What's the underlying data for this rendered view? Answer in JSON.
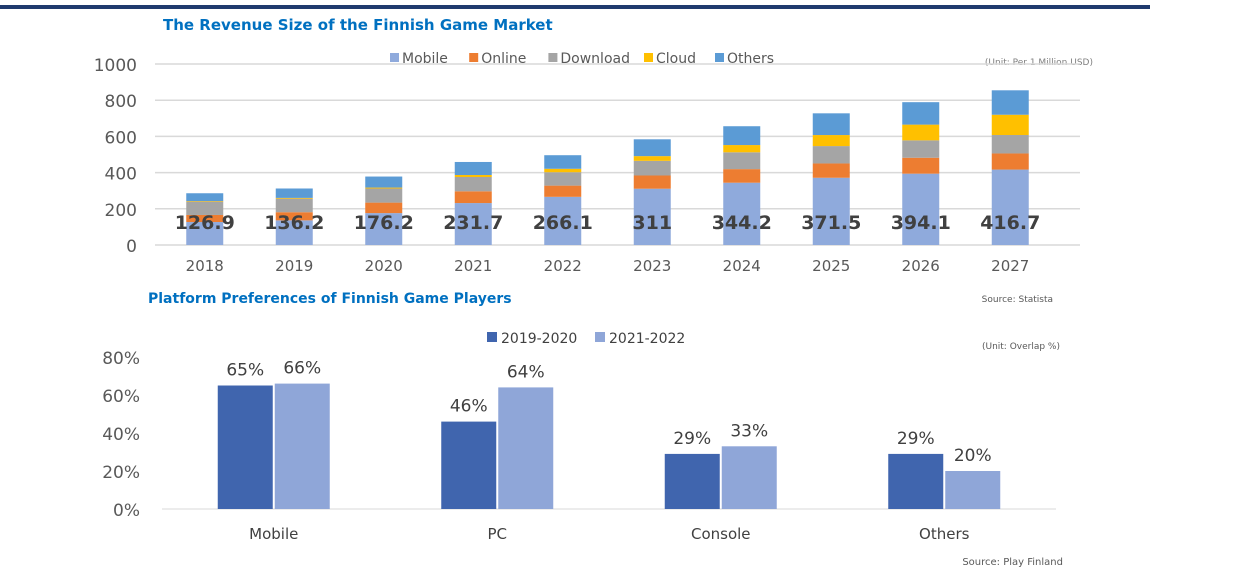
{
  "chart_data": [
    {
      "type": "bar",
      "stacked": true,
      "title": "The Revenue Size of the Finnish Game Market",
      "unit_note": "(Unit: Per 1 Million USD)",
      "source": "Source: Statista",
      "categories": [
        "2018",
        "2019",
        "2020",
        "2021",
        "2022",
        "2023",
        "2024",
        "2025",
        "2026",
        "2027"
      ],
      "ylim": [
        0,
        1000
      ],
      "yticks": [
        0,
        200,
        400,
        600,
        800,
        1000
      ],
      "grid": true,
      "legend_position": "top",
      "series": [
        {
          "name": "Mobile",
          "color": "#8FAADC",
          "values": [
            126.9,
            136.2,
            176.2,
            231.7,
            266.1,
            311,
            344.2,
            371.5,
            394.1,
            416.7
          ],
          "labels": [
            "126.9",
            "136.2",
            "176.2",
            "231.7",
            "266.1",
            "311",
            "344.2",
            "371.5",
            "394.1",
            "416.7"
          ]
        },
        {
          "name": "Online",
          "color": "#ED7D31",
          "values": [
            39,
            45,
            58,
            65,
            62,
            73,
            75,
            79,
            88,
            89
          ]
        },
        {
          "name": "Download",
          "color": "#A5A5A5",
          "values": [
            74,
            75,
            78,
            79,
            74,
            81,
            93,
            96,
            96,
            102
          ]
        },
        {
          "name": "Cloud",
          "color": "#FFC000",
          "values": [
            3,
            4,
            5,
            11,
            19,
            26,
            40,
            61,
            87,
            112
          ]
        },
        {
          "name": "Others",
          "color": "#5B9BD5",
          "values": [
            43,
            52,
            61,
            72,
            75,
            93,
            104,
            120,
            124,
            135
          ]
        }
      ]
    },
    {
      "type": "bar",
      "title": "Platform Preferences of Finnish Game Players",
      "unit_note": "(Unit: Overlap %)",
      "source": "Source: Play Finland",
      "categories": [
        "Mobile",
        "PC",
        "Console",
        "Others"
      ],
      "ylim": [
        0,
        80
      ],
      "yticks": [
        "0%",
        "20%",
        "40%",
        "60%",
        "80%"
      ],
      "grid": false,
      "legend_position": "top",
      "series": [
        {
          "name": "2019-2020",
          "color": "#4065AE",
          "values": [
            65,
            46,
            29,
            29
          ],
          "labels": [
            "65%",
            "46%",
            "29%",
            "29%"
          ]
        },
        {
          "name": "2021-2022",
          "color": "#8FA6D8",
          "values": [
            66,
            64,
            33,
            20
          ],
          "labels": [
            "66%",
            "64%",
            "33%",
            "20%"
          ]
        }
      ]
    }
  ],
  "colors": {
    "title": "#0070C0",
    "top_rule": "#1F3A6E"
  }
}
